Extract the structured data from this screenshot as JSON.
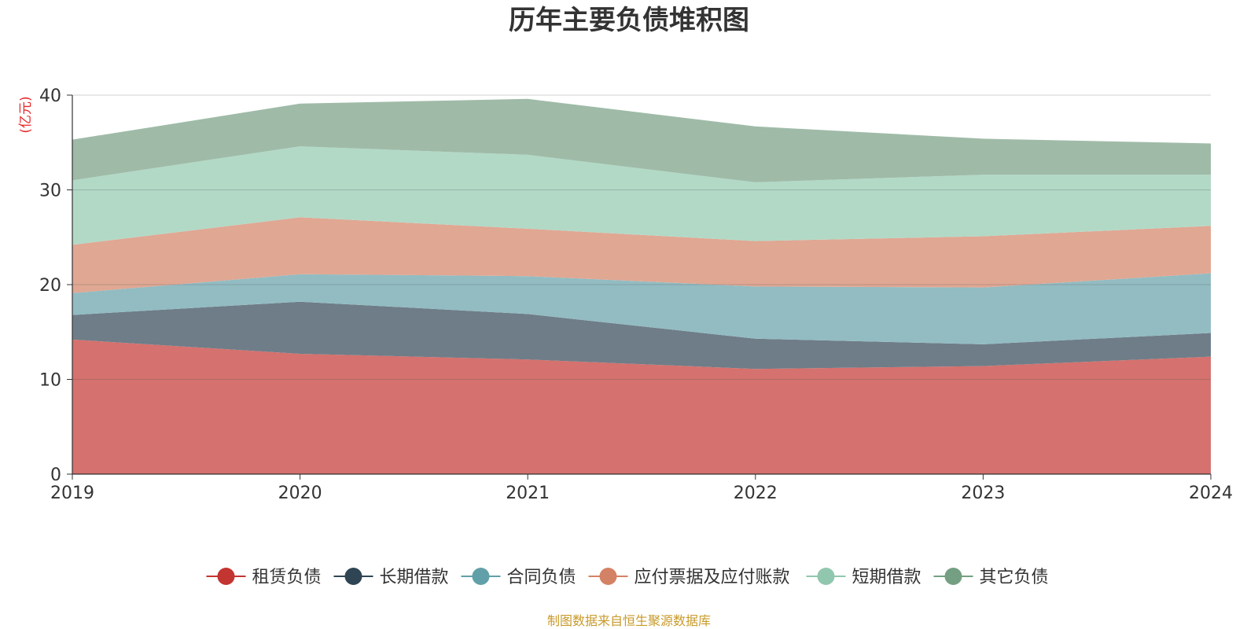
{
  "title": "历年主要负债堆积图",
  "source": "制图数据来自恒生聚源数据库",
  "chart_data": {
    "type": "area",
    "stacked": true,
    "title": "历年主要负债堆积图",
    "unit": "(亿元)",
    "x": [
      "2019",
      "2020",
      "2021",
      "2022",
      "2023",
      "2024"
    ],
    "ylim": [
      0,
      40
    ],
    "yticks": [
      "0",
      "10",
      "20",
      "30",
      "40"
    ],
    "grid": true,
    "legend_position": "bottom",
    "series": [
      {
        "name": "租赁负债",
        "values": [
          14.2,
          12.7,
          12.1,
          11.1,
          11.4,
          12.4
        ],
        "color": "#c23531",
        "fill": "#d5716e"
      },
      {
        "name": "长期借款",
        "values": [
          2.6,
          5.5,
          4.8,
          3.2,
          2.3,
          2.5
        ],
        "color": "#2f4554",
        "fill": "#6f7d88"
      },
      {
        "name": "合同负债",
        "values": [
          2.3,
          2.9,
          4.0,
          5.5,
          6.0,
          6.3
        ],
        "color": "#61a0a8",
        "fill": "#92bcc2"
      },
      {
        "name": "应付票据及应付账款",
        "values": [
          5.1,
          6.0,
          5.0,
          4.8,
          5.4,
          5.0
        ],
        "color": "#d48265",
        "fill": "#e0a793"
      },
      {
        "name": "短期借款",
        "values": [
          6.8,
          7.5,
          7.8,
          6.2,
          6.5,
          5.4
        ],
        "color": "#91c7ae",
        "fill": "#b2d9c6"
      },
      {
        "name": "其它负债",
        "values": [
          4.3,
          4.5,
          5.9,
          5.9,
          3.8,
          3.3
        ],
        "color": "#749f83",
        "fill": "#9fbba8"
      }
    ]
  }
}
